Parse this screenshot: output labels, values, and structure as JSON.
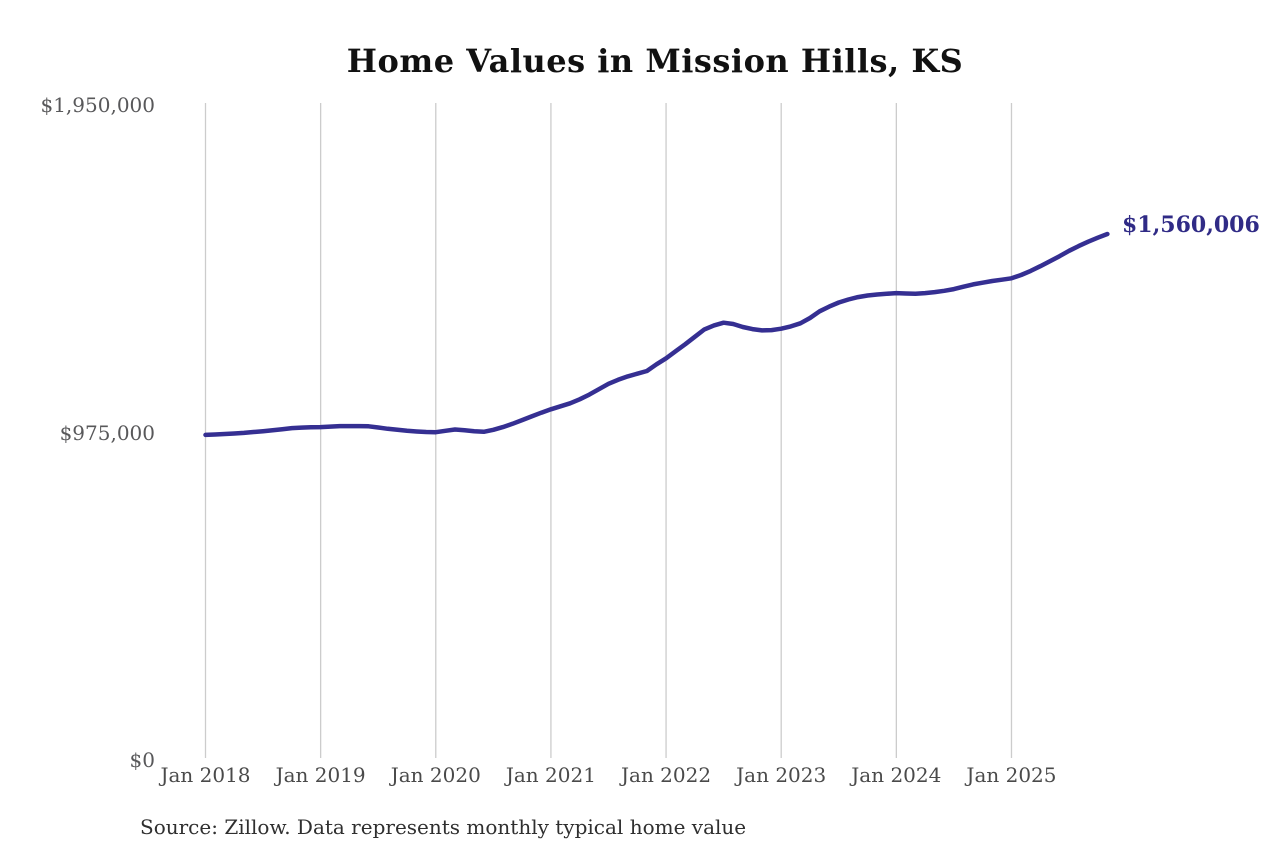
{
  "header": {
    "title": "Home Values in Mission Hills, KS"
  },
  "chart": {
    "end_label": "$1,560,006",
    "line_color": "#352f92",
    "end_label_color": "#302b86",
    "grid_color": "#cccccc"
  },
  "footer": {
    "source": "Source: Zillow. Data represents monthly typical home value"
  },
  "chart_data": {
    "type": "line",
    "title": "Home Values in Mission Hills, KS",
    "xlabel": "",
    "ylabel": "",
    "x_start": "2018-01",
    "x_end": "2025-11",
    "x_frequency": "monthly",
    "x_tick_labels": [
      "Jan 2018",
      "Jan 2019",
      "Jan 2020",
      "Jan 2021",
      "Jan 2022",
      "Jan 2023",
      "Jan 2024",
      "Jan 2025"
    ],
    "y_tick_labels": [
      "$0",
      "$975,000",
      "$1,950,000"
    ],
    "y_ticks": [
      0,
      975000,
      1950000
    ],
    "ylim": [
      0,
      1950000
    ],
    "grid": "vertical-only",
    "legend": "none",
    "end_value": 1560006,
    "series": [
      {
        "name": "Monthly typical home value",
        "values": [
          962000,
          963000,
          964500,
          966000,
          968000,
          970500,
          973000,
          976000,
          979000,
          982000,
          983500,
          984500,
          985000,
          986500,
          988000,
          988000,
          988000,
          987500,
          984000,
          980000,
          977000,
          974000,
          972000,
          970500,
          970000,
          974000,
          978000,
          976000,
          973000,
          971000,
          977000,
          985000,
          995000,
          1006000,
          1017000,
          1028000,
          1038000,
          1047000,
          1056000,
          1068000,
          1082000,
          1098000,
          1114000,
          1126000,
          1136000,
          1144000,
          1152000,
          1172000,
          1190000,
          1211000,
          1232000,
          1254000,
          1276000,
          1288000,
          1296000,
          1292000,
          1283000,
          1277000,
          1273000,
          1274000,
          1278000,
          1285000,
          1294000,
          1310000,
          1330000,
          1344000,
          1356000,
          1365000,
          1372000,
          1377000,
          1380000,
          1382000,
          1384000,
          1383000,
          1382000,
          1384000,
          1387000,
          1391000,
          1396000,
          1403000,
          1410000,
          1415000,
          1420000,
          1424000,
          1428000,
          1438000,
          1450000,
          1464000,
          1479000,
          1494000,
          1510000,
          1524000,
          1537000,
          1549000,
          1560006
        ]
      }
    ]
  }
}
